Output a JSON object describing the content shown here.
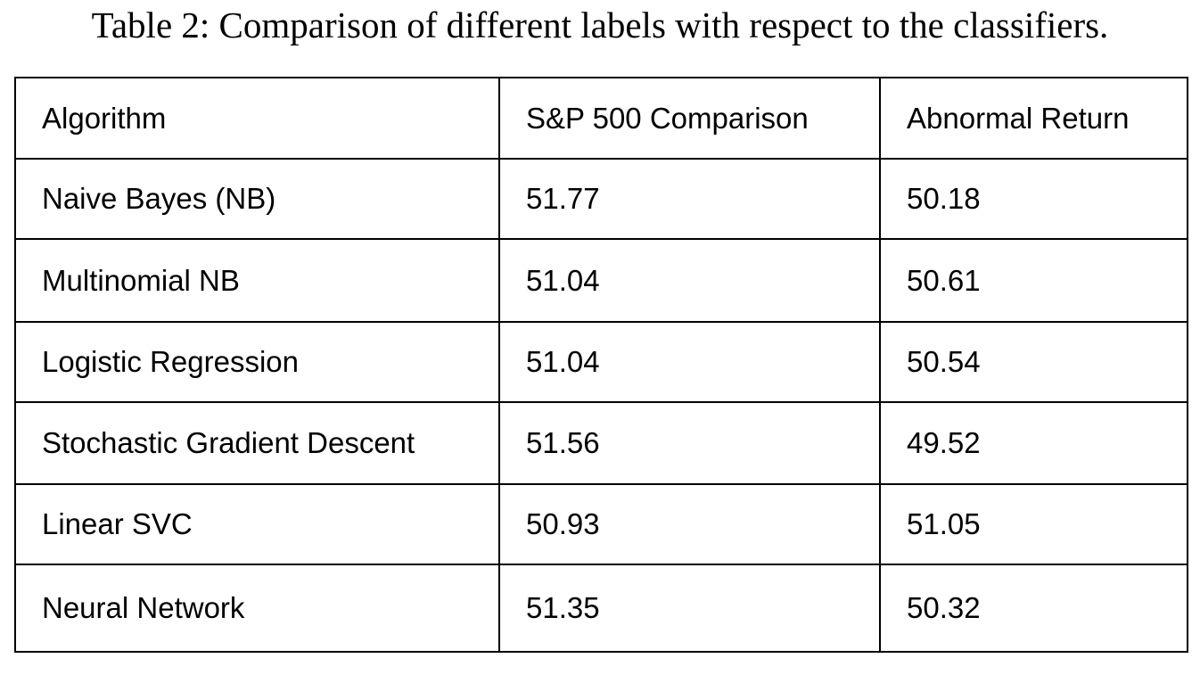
{
  "caption": "Table 2: Comparison of different labels with respect to the classifiers.",
  "table": {
    "headers": [
      "Algorithm",
      "S&P 500 Comparison",
      "Abnormal Return"
    ],
    "rows": [
      [
        "Naive Bayes (NB)",
        "51.77",
        "50.18"
      ],
      [
        "Multinomial NB",
        "51.04",
        "50.61"
      ],
      [
        "Logistic Regression",
        "51.04",
        "50.54"
      ],
      [
        "Stochastic Gradient Descent",
        "51.56",
        "49.52"
      ],
      [
        "Linear SVC",
        "50.93",
        "51.05"
      ],
      [
        "Neural Network",
        "51.35",
        "50.32"
      ]
    ]
  }
}
